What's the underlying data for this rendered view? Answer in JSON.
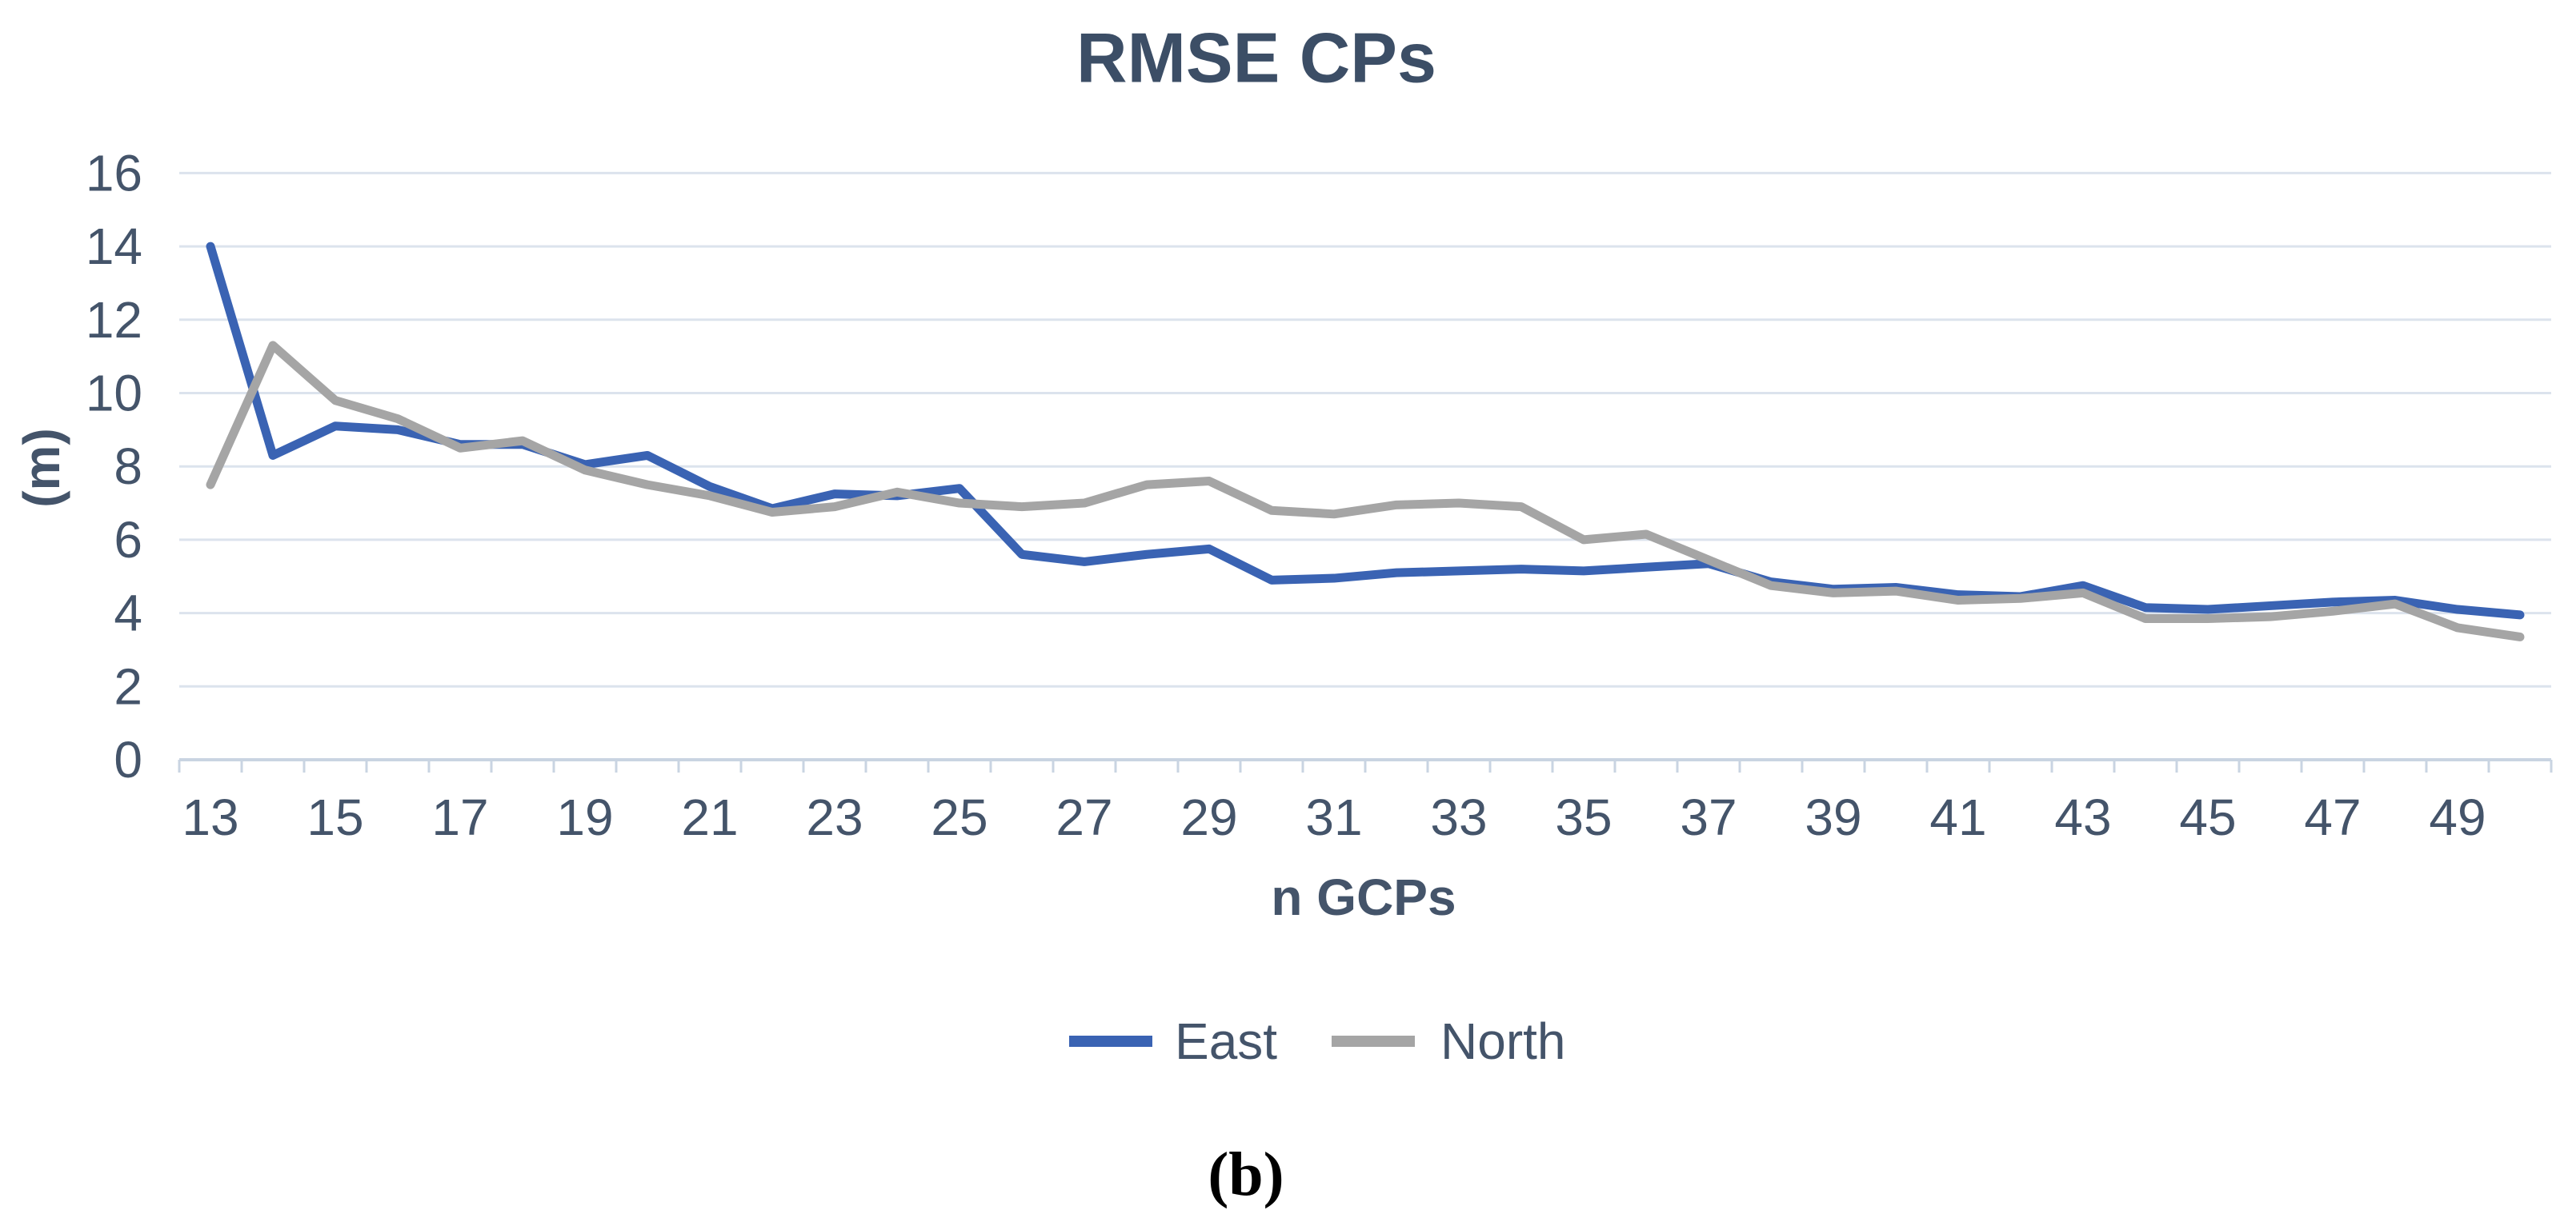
{
  "figure": {
    "title": "RMSE CPs",
    "y_axis_label": "(m)",
    "x_axis_label": "n GCPs",
    "caption": "(b)"
  },
  "colors": {
    "east": "#3A63B3",
    "north": "#A5A5A5",
    "gridline": "#DCE3ED",
    "axis_line": "#C9D4E2",
    "text": "#44546A",
    "title_text": "#3C4E66",
    "caption_text": "#000000"
  },
  "chart_data": {
    "type": "line",
    "title": "RMSE CPs",
    "xlabel": "n GCPs",
    "ylabel": "(m)",
    "xlim": [
      13,
      50
    ],
    "ylim": [
      0,
      16
    ],
    "grid": "horizontal",
    "legend_position": "bottom-center",
    "x": [
      13,
      14,
      15,
      16,
      17,
      18,
      19,
      20,
      21,
      22,
      23,
      24,
      25,
      26,
      27,
      28,
      29,
      30,
      31,
      32,
      33,
      34,
      35,
      36,
      37,
      38,
      39,
      40,
      41,
      42,
      43,
      44,
      45,
      46,
      47,
      48,
      49,
      50
    ],
    "x_tick_labels": [
      13,
      15,
      17,
      19,
      21,
      23,
      25,
      27,
      29,
      31,
      33,
      35,
      37,
      39,
      41,
      43,
      45,
      47,
      49
    ],
    "y_ticks": [
      0,
      2,
      4,
      6,
      8,
      10,
      12,
      14,
      16
    ],
    "series": [
      {
        "name": "East",
        "color": "#3A63B3",
        "values": [
          14.0,
          8.3,
          9.1,
          9.0,
          8.6,
          8.6,
          8.05,
          8.3,
          7.45,
          6.85,
          7.25,
          7.2,
          7.4,
          5.6,
          5.4,
          5.6,
          5.75,
          4.9,
          4.95,
          5.1,
          5.15,
          5.2,
          5.15,
          5.25,
          5.35,
          4.85,
          4.65,
          4.7,
          4.5,
          4.45,
          4.75,
          4.15,
          4.1,
          4.2,
          4.3,
          4.35,
          4.1,
          3.95
        ]
      },
      {
        "name": "North",
        "color": "#A5A5A5",
        "values": [
          7.5,
          11.3,
          9.8,
          9.3,
          8.5,
          8.7,
          7.9,
          7.5,
          7.2,
          6.75,
          6.9,
          7.3,
          7.0,
          6.9,
          7.0,
          7.5,
          7.6,
          6.8,
          6.7,
          6.95,
          7.0,
          6.9,
          6.0,
          6.15,
          5.45,
          4.75,
          4.55,
          4.6,
          4.35,
          4.4,
          4.55,
          3.85,
          3.85,
          3.9,
          4.05,
          4.25,
          3.6,
          3.35
        ]
      }
    ]
  }
}
